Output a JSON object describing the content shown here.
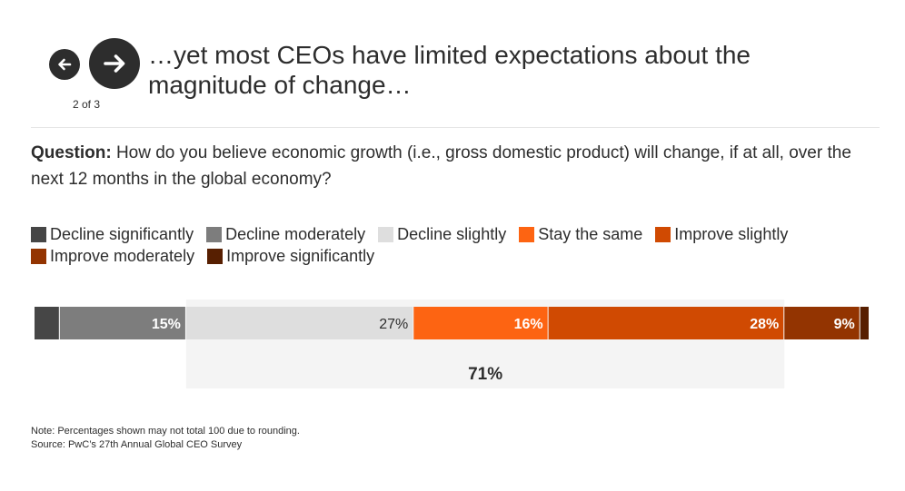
{
  "nav": {
    "prev_icon": "arrow-left-icon",
    "next_icon": "arrow-right-icon",
    "counter": "2 of 3"
  },
  "headline": "…yet most CEOs have limited expectations about the magnitude of change…",
  "question": {
    "label": "Question:",
    "text": " How do you believe economic growth (i.e., gross domestic product) will change, if at all, over the next 12 months in the global economy?"
  },
  "chart_data": {
    "type": "bar",
    "orientation": "horizontal-stacked",
    "categories": [
      "Decline significantly",
      "Decline moderately",
      "Decline slightly",
      "Stay the same",
      "Improve slightly",
      "Improve moderately",
      "Improve significantly"
    ],
    "values": [
      3,
      15,
      27,
      16,
      28,
      9,
      1
    ],
    "labels": [
      "",
      "15%",
      "27%",
      "16%",
      "28%",
      "9%",
      ""
    ],
    "colors": [
      "#464646",
      "#7d7d7d",
      "#dedede",
      "#fd6412",
      "#d04a02",
      "#933401",
      "#571f01"
    ],
    "label_colors": [
      "#ffffff",
      "#ffffff",
      "#2d2d2d",
      "#ffffff",
      "#ffffff",
      "#ffffff",
      "#ffffff"
    ],
    "bracket": {
      "from": 2,
      "to": 4,
      "label": "71%"
    },
    "xlim": [
      0,
      99
    ],
    "title": "",
    "xlabel": "",
    "ylabel": ""
  },
  "notes": {
    "note": "Note: Percentages shown may not total 100 due to rounding.",
    "source": "Source: PwC’s 27th Annual Global CEO Survey"
  }
}
